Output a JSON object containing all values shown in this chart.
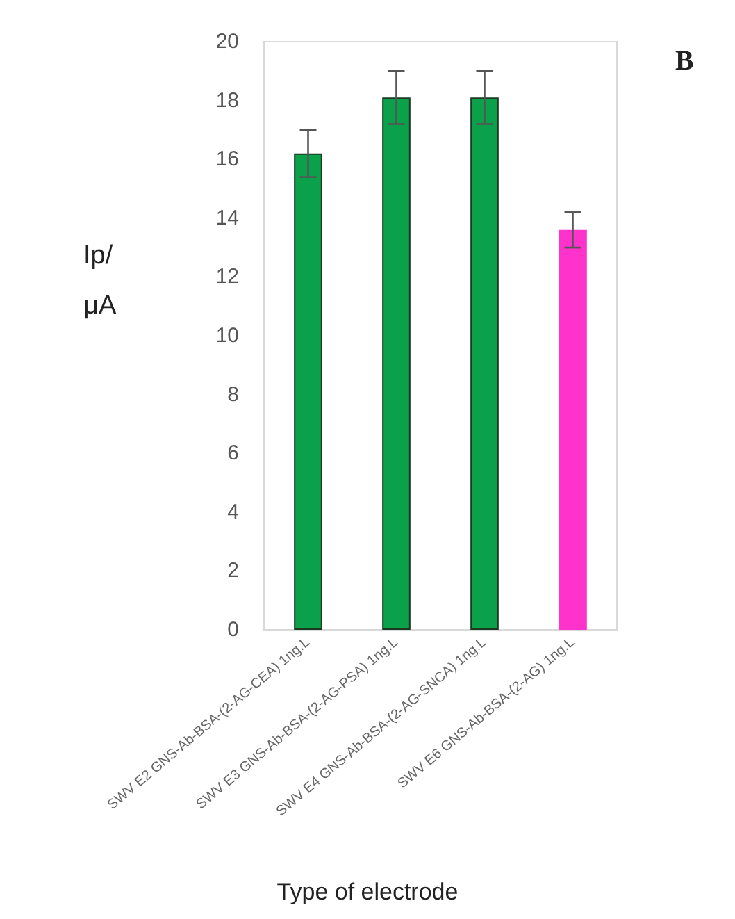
{
  "chart_data": {
    "type": "bar",
    "xlabel": "Type of electrode",
    "ylabel": "Ip/ μA",
    "annotations": [
      "B"
    ],
    "categories": [
      "SWV E2 GNS-Ab-BSA-(2-AG-CEA) 1ng.L",
      "SWV E3 GNS-Ab-BSA-(2-AG-PSA) 1ng.L",
      "SWV E4 GNS-Ab-BSA-(2-AG-SNCA) 1ng.L",
      "SWV E6 GNS-Ab-BSA-(2-AG) 1ng.L"
    ],
    "values": [
      16.2,
      18.1,
      18.1,
      13.6
    ],
    "errors": [
      0.8,
      0.9,
      0.9,
      0.6
    ],
    "colors": [
      "#0ba04a",
      "#0ba04a",
      "#0ba04a",
      "#ff33cc"
    ],
    "ylim": [
      0,
      20
    ],
    "yticks": [
      0,
      2,
      4,
      6,
      8,
      10,
      12,
      14,
      16,
      18,
      20
    ],
    "grid": false
  }
}
